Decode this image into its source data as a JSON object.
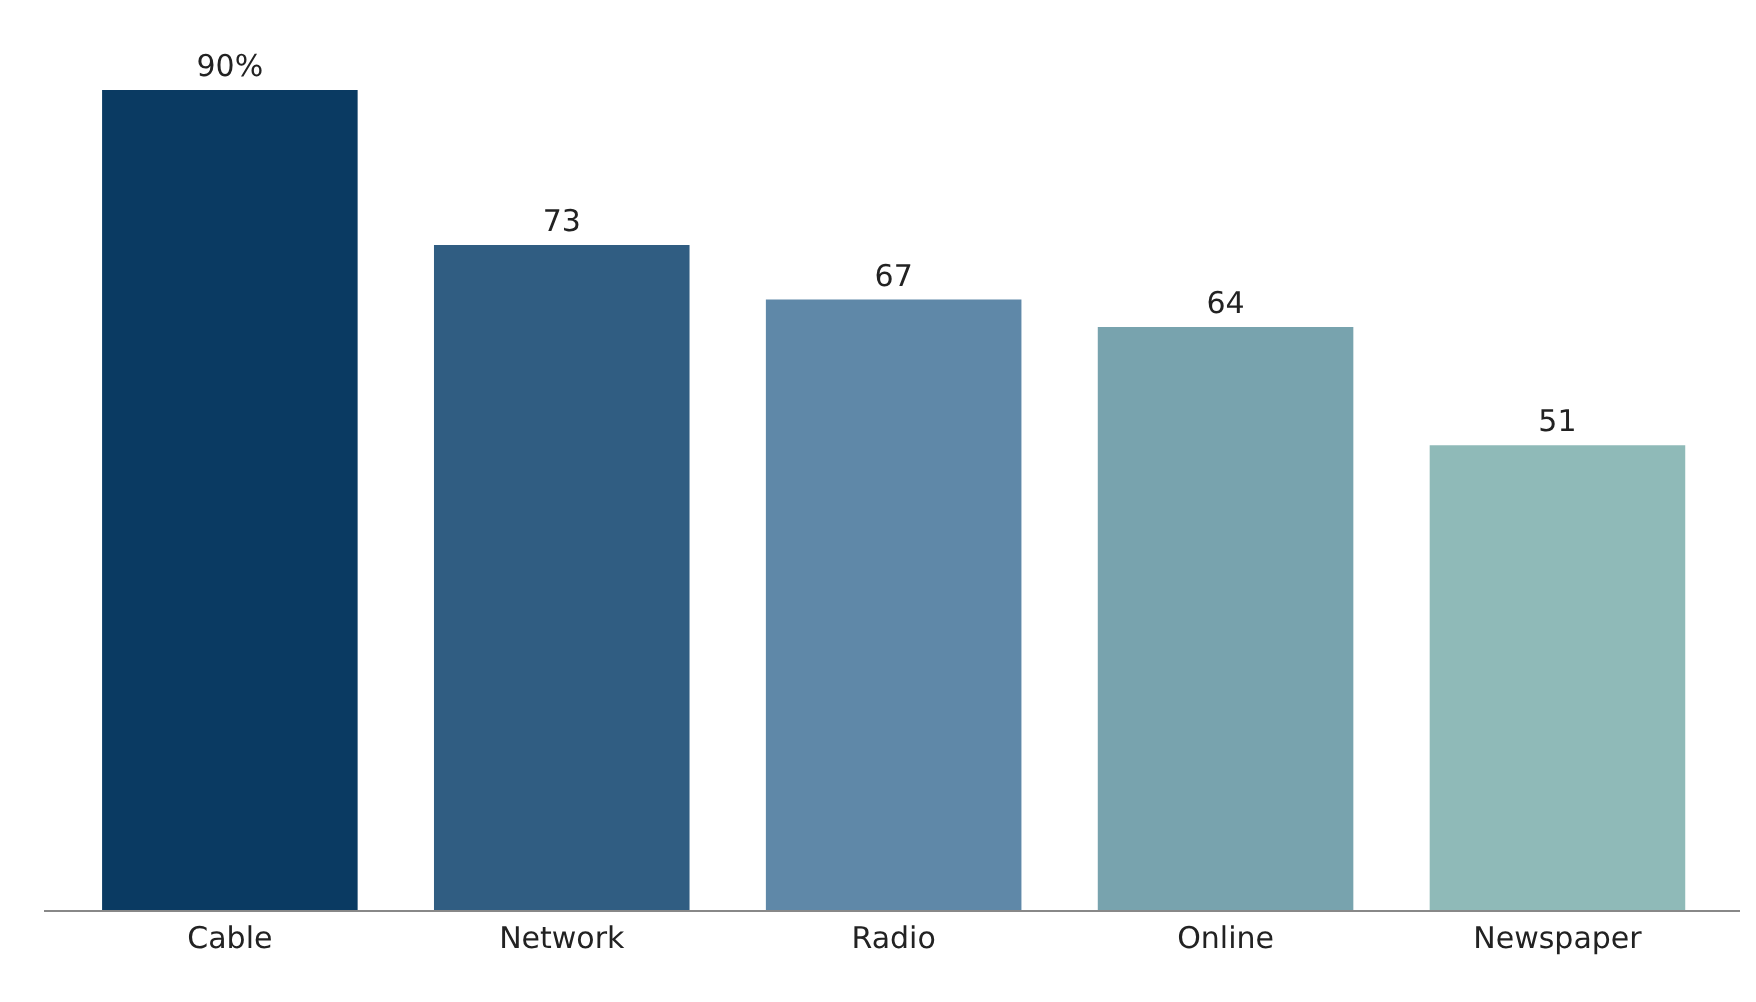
{
  "chart_data": {
    "type": "bar",
    "categories": [
      "Cable",
      "Network",
      "Radio",
      "Online",
      "Newspaper"
    ],
    "values": [
      90,
      73,
      67,
      64,
      51
    ],
    "colors": [
      "#0a3a62",
      "#305d82",
      "#5f88a8",
      "#78a3ae",
      "#8fbab8"
    ],
    "value_labels": [
      "90%",
      "73",
      "67",
      "64",
      "51"
    ]
  }
}
